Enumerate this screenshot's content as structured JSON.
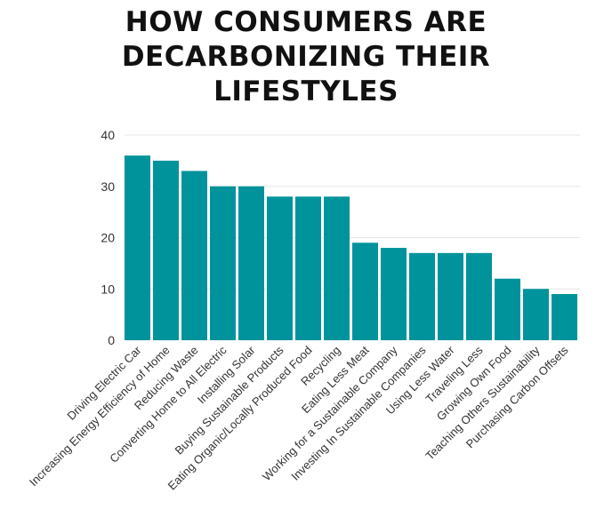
{
  "chart_data": {
    "type": "bar",
    "title_lines": [
      "HOW CONSUMERS ARE",
      "DECARBONIZING THEIR",
      "LIFESTYLES"
    ],
    "title": "HOW CONSUMERS ARE DECARBONIZING THEIR LIFESTYLES",
    "xlabel": "",
    "ylabel": "",
    "ylim": [
      0,
      40
    ],
    "yticks": [
      0,
      10,
      20,
      30,
      40
    ],
    "grid": true,
    "legend": "none",
    "bar_color": "#00939b",
    "categories": [
      "Driving Electric Car",
      "Increasing Energy Efficiency of Home",
      "Reducing Waste",
      "Converting Home to All Electric",
      "Installing Solar",
      "Buying Sustainable Products",
      "Eating Organic/Locally Produced Food",
      "Recycling",
      "Eating Less Meat",
      "Working for a Sustainable Company",
      "Investing In Sustainable Companies",
      "Using Less Water",
      "Traveling Less",
      "Growing Own Food",
      "Teaching Others Sustainability",
      "Purchasing Carbon Offsets"
    ],
    "values": [
      36,
      35,
      33,
      30,
      30,
      28,
      28,
      28,
      19,
      18,
      17,
      17,
      17,
      12,
      10,
      9
    ]
  }
}
